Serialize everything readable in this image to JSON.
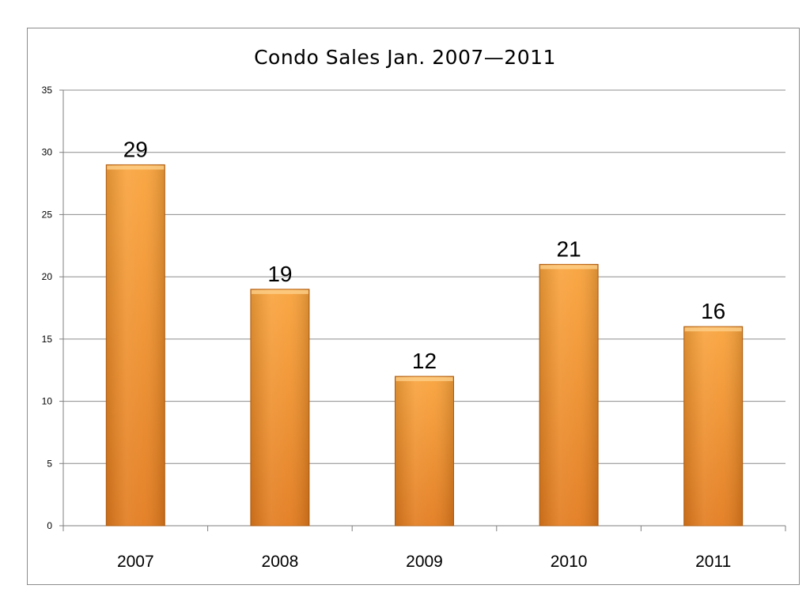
{
  "chart_data": {
    "type": "bar",
    "title": "Condo Sales Jan. 2007—2011",
    "categories": [
      "2007",
      "2008",
      "2009",
      "2010",
      "2011"
    ],
    "values": [
      29,
      19,
      12,
      21,
      16
    ],
    "data_labels": [
      "29",
      "19",
      "12",
      "21",
      "16"
    ],
    "ylim": [
      0,
      35
    ],
    "yticks": [
      0,
      5,
      10,
      15,
      20,
      25,
      30,
      35
    ],
    "xlabel": "",
    "ylabel": "",
    "grid": true,
    "legend": "none"
  },
  "colors": {
    "bar_top": "#f9a23a",
    "bar_bottom": "#e27a1c",
    "bar_edge": "#b8600f",
    "grid": "#8c8c8c",
    "axis": "#7f7f7f"
  }
}
